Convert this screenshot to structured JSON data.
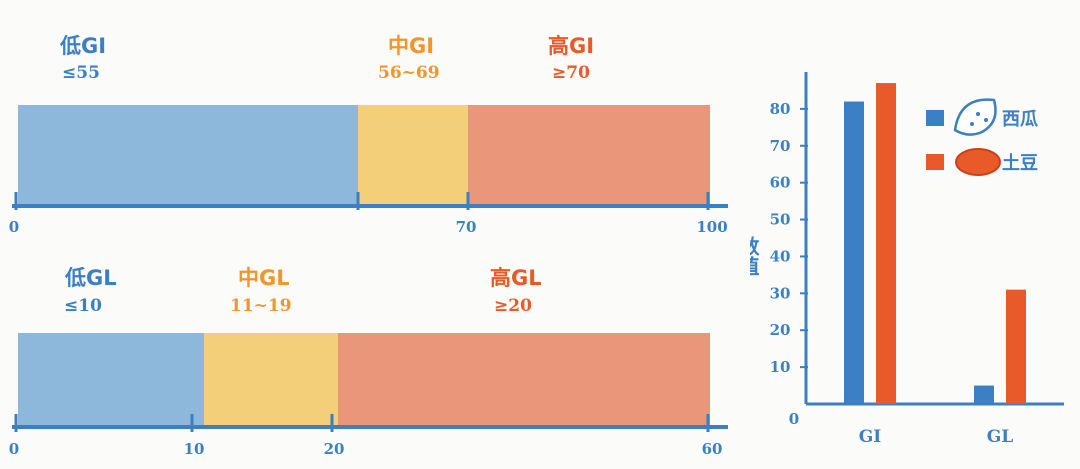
{
  "colors": {
    "blue": "#3b7fc4",
    "yellow": "#f0962f",
    "red": "#e85a2a",
    "fill_blue": "#8db8dc",
    "fill_yellow": "#f2cf78",
    "fill_red": "#e9967a"
  },
  "gi_bar": {
    "labels": [
      {
        "cat": "低GI",
        "range": "≤55"
      },
      {
        "cat": "中GI",
        "range": "56~69"
      },
      {
        "cat": "高GI",
        "range": "≥70"
      }
    ],
    "ticks": [
      "0",
      "70",
      "100"
    ],
    "scale_max": 100,
    "segments": [
      55,
      69,
      100
    ]
  },
  "gl_bar": {
    "labels": [
      {
        "cat": "低GL",
        "range": "≤10"
      },
      {
        "cat": "中GL",
        "range": "11~19"
      },
      {
        "cat": "高GL",
        "range": "≥20"
      }
    ],
    "ticks": [
      "0",
      "10",
      "20",
      "60"
    ],
    "scale_max": 60,
    "segments": [
      10,
      20,
      60
    ]
  },
  "chart_data": {
    "type": "bar",
    "categories": [
      "GI",
      "GL"
    ],
    "series": [
      {
        "name": "西瓜",
        "values": [
          82,
          5
        ],
        "color": "#3b7fc4",
        "icon": "watermelon-icon"
      },
      {
        "name": "土豆",
        "values": [
          87,
          31
        ],
        "color": "#e85a2a",
        "icon": "potato-icon"
      }
    ],
    "ylabel": "数值",
    "yticks": [
      "0",
      "10",
      "20",
      "30",
      "40",
      "50",
      "60",
      "70",
      "80"
    ],
    "ylim": [
      0,
      90
    ]
  }
}
